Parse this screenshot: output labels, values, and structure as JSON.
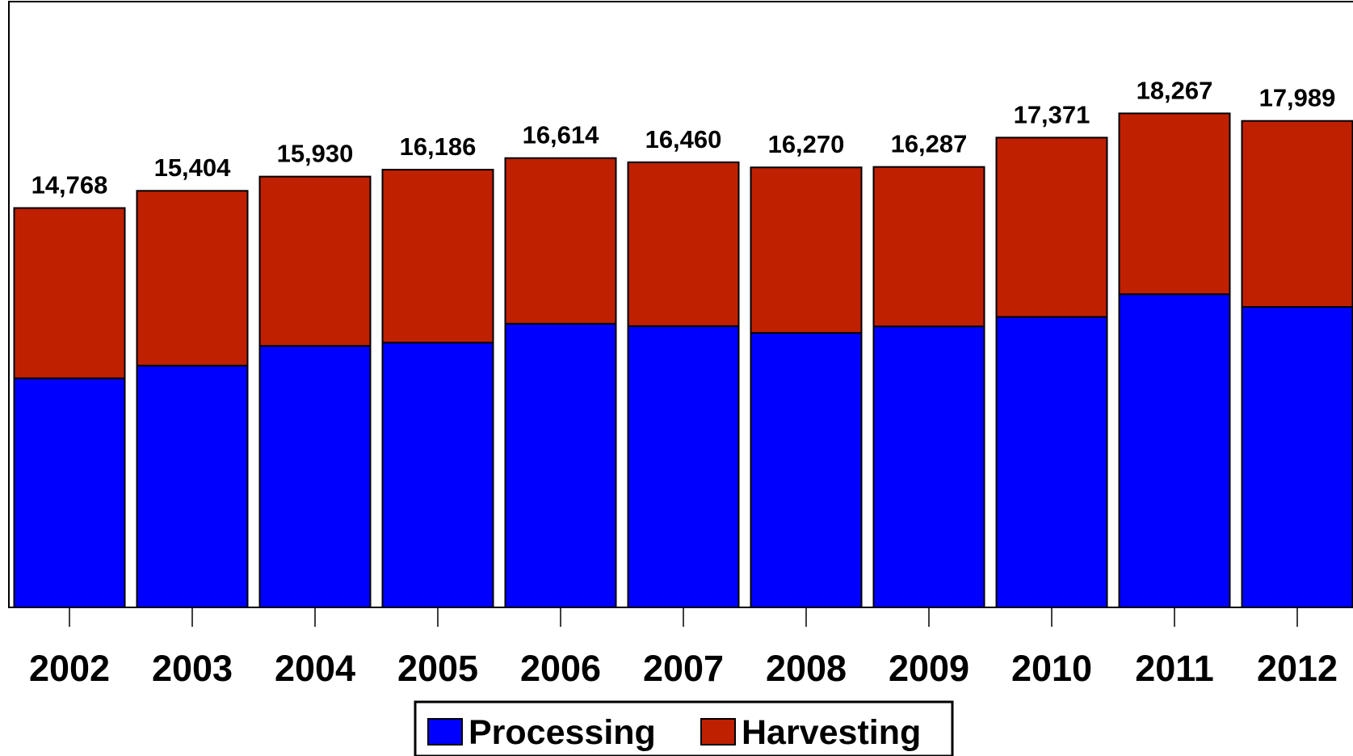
{
  "chart_data": {
    "type": "bar",
    "stacked": true,
    "categories": [
      "2002",
      "2003",
      "2004",
      "2005",
      "2006",
      "2007",
      "2008",
      "2009",
      "2010",
      "2011",
      "2012"
    ],
    "series": [
      {
        "name": "Processing",
        "color": "#0000ff",
        "values": [
          8470,
          8940,
          9670,
          9790,
          10490,
          10400,
          10150,
          10390,
          10740,
          11580,
          11110
        ]
      },
      {
        "name": "Harvesting",
        "color": "#bf2000",
        "values": [
          6298,
          6464,
          6260,
          6396,
          6124,
          6060,
          6120,
          5897,
          6631,
          6687,
          6879
        ]
      }
    ],
    "totals": [
      14768,
      15404,
      15930,
      16186,
      16614,
      16460,
      16270,
      16287,
      17371,
      18267,
      17989
    ],
    "total_labels": [
      "14,768",
      "15,404",
      "15,930",
      "16,186",
      "16,614",
      "16,460",
      "16,270",
      "16,287",
      "17,371",
      "18,267",
      "17,989"
    ],
    "ylim": [
      0,
      22400
    ],
    "grid": false,
    "legend_position": "bottom-center"
  }
}
